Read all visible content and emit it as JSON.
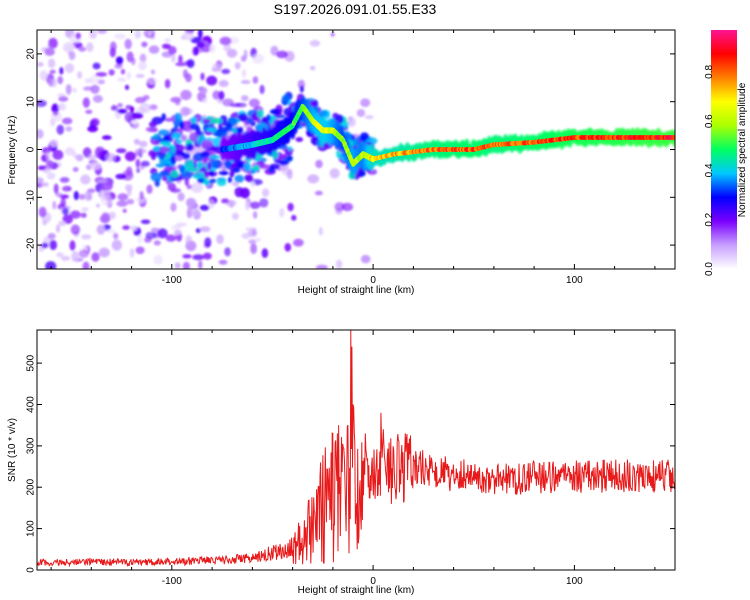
{
  "title": "S197.2026.091.01.55.E33",
  "chart_data": [
    {
      "type": "heatmap",
      "name": "spectrogram",
      "xlabel": "Height of straight line (km)",
      "ylabel": "Frequency (Hz)",
      "xlim": [
        -167,
        150
      ],
      "ylim": [
        -25,
        25
      ],
      "xticks": [
        -100,
        0,
        100
      ],
      "yticks": [
        -20,
        -10,
        0,
        10,
        20
      ],
      "colorbar": {
        "label": "Normalized spectral amplitude",
        "range": [
          0.0,
          0.97
        ],
        "ticks": [
          "0.0",
          "0.2",
          "0.4",
          "0.6",
          "0.8"
        ],
        "tick_values": [
          0.0,
          0.2,
          0.4,
          0.6,
          0.8
        ],
        "colors": [
          "#ffffff",
          "#c8a0ff",
          "#7a00ff",
          "#0000ff",
          "#00c8ff",
          "#00ff60",
          "#aaff00",
          "#ffff00",
          "#ff8000",
          "#ff0000",
          "#ff1493"
        ]
      },
      "ridge": [
        {
          "x": -75,
          "f": 0,
          "a": 0.35
        },
        {
          "x": -60,
          "f": 1,
          "a": 0.45
        },
        {
          "x": -50,
          "f": 2,
          "a": 0.5
        },
        {
          "x": -40,
          "f": 5,
          "a": 0.55
        },
        {
          "x": -35,
          "f": 9,
          "a": 0.6
        },
        {
          "x": -30,
          "f": 6,
          "a": 0.7
        },
        {
          "x": -25,
          "f": 4,
          "a": 0.75
        },
        {
          "x": -20,
          "f": 4,
          "a": 0.7
        },
        {
          "x": -15,
          "f": 2,
          "a": 0.6
        },
        {
          "x": -10,
          "f": -3,
          "a": 0.7
        },
        {
          "x": -5,
          "f": -1,
          "a": 0.65
        },
        {
          "x": 0,
          "f": -2,
          "a": 0.8
        },
        {
          "x": 10,
          "f": -1,
          "a": 0.82
        },
        {
          "x": 20,
          "f": -0.5,
          "a": 0.85
        },
        {
          "x": 30,
          "f": 0,
          "a": 0.88
        },
        {
          "x": 50,
          "f": 0,
          "a": 0.9
        },
        {
          "x": 60,
          "f": 1,
          "a": 0.88
        },
        {
          "x": 80,
          "f": 1.5,
          "a": 0.9
        },
        {
          "x": 100,
          "f": 2.5,
          "a": 0.93
        },
        {
          "x": 150,
          "f": 2.5,
          "a": 0.97
        }
      ]
    },
    {
      "type": "line",
      "name": "snr",
      "xlabel": "Height of straight line (km)",
      "ylabel": "SNR (10 * v/v)",
      "xlim": [
        -167,
        150
      ],
      "ylim": [
        0,
        580
      ],
      "xticks": [
        -100,
        0,
        100
      ],
      "yticks": [
        0,
        100,
        200,
        300,
        400,
        500
      ],
      "color": "#e8191a",
      "envelope": [
        {
          "x": -167,
          "y": 18
        },
        {
          "x": -100,
          "y": 20
        },
        {
          "x": -60,
          "y": 28
        },
        {
          "x": -40,
          "y": 55
        },
        {
          "x": -30,
          "y": 110
        },
        {
          "x": -22,
          "y": 170
        },
        {
          "x": -15,
          "y": 200
        },
        {
          "x": -5,
          "y": 220
        },
        {
          "x": 0,
          "y": 240
        },
        {
          "x": 10,
          "y": 245
        },
        {
          "x": 25,
          "y": 250
        },
        {
          "x": 40,
          "y": 230
        },
        {
          "x": 60,
          "y": 220
        },
        {
          "x": 90,
          "y": 225
        },
        {
          "x": 150,
          "y": 230
        }
      ],
      "spikes": [
        {
          "x": -26,
          "y": 260
        },
        {
          "x": -20,
          "y": 330
        },
        {
          "x": -15,
          "y": 305
        },
        {
          "x": -11,
          "y": 580
        },
        {
          "x": -10.5,
          "y": 540
        },
        {
          "x": -10,
          "y": 400
        },
        {
          "x": -12,
          "y": 40
        },
        {
          "x": -8,
          "y": 50
        },
        {
          "x": -4,
          "y": 330
        },
        {
          "x": 4,
          "y": 380
        },
        {
          "x": 16,
          "y": 330
        },
        {
          "x": 5,
          "y": 340
        }
      ]
    }
  ]
}
